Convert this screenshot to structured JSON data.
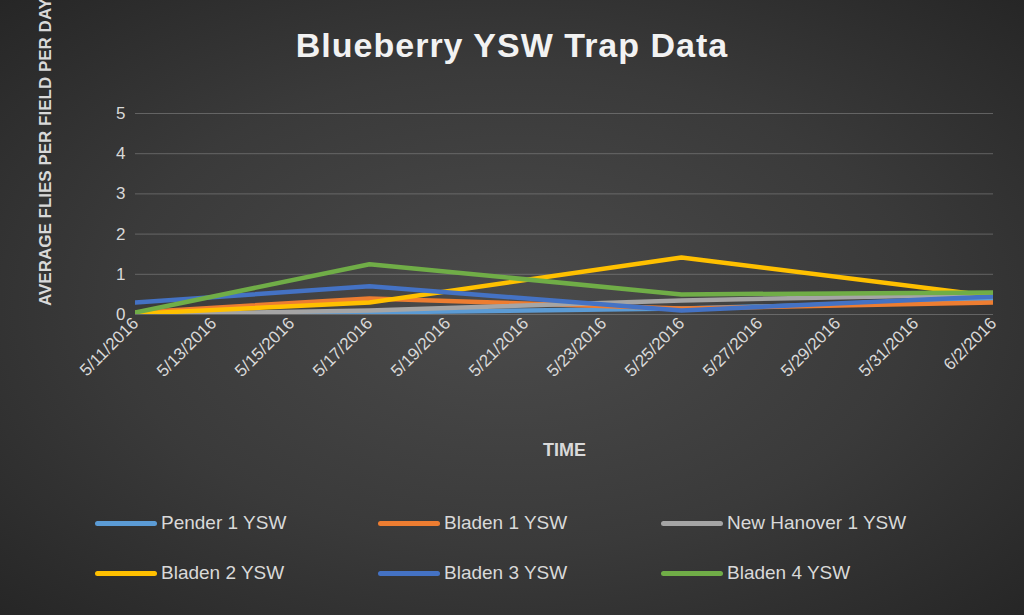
{
  "chart_data": {
    "type": "line",
    "title": "Blueberry YSW Trap Data",
    "x_label": "TIME",
    "y_label": "AVERAGE FLIES PER FIELD PER DAY",
    "x": [
      "5/11/2016",
      "5/17/2016",
      "5/25/2016",
      "6/2/2016"
    ],
    "series": [
      {
        "name": "Pender 1 YSW",
        "color": "#5b9bd5",
        "values": [
          0,
          0.05,
          0.15,
          0.35
        ]
      },
      {
        "name": "Bladen 1 YSW",
        "color": "#ed7d31",
        "values": [
          0.05,
          0.4,
          0.15,
          0.3
        ]
      },
      {
        "name": "New Hanover 1 YSW",
        "color": "#a5a5a5",
        "values": [
          0,
          0.1,
          0.35,
          0.5
        ]
      },
      {
        "name": "Bladen 2 YSW",
        "color": "#ffc000",
        "values": [
          0.02,
          0.3,
          1.42,
          0.45
        ]
      },
      {
        "name": "Bladen 3 YSW",
        "color": "#4472c4",
        "values": [
          0.3,
          0.7,
          0.1,
          0.45
        ]
      },
      {
        "name": "Bladen 4 YSW",
        "color": "#70ad47",
        "values": [
          0.05,
          1.25,
          0.5,
          0.55
        ]
      }
    ],
    "xlim": [
      "5/11/2016",
      "6/2/2016"
    ],
    "xticks": [
      "5/11/2016",
      "5/13/2016",
      "5/15/2016",
      "5/17/2016",
      "5/19/2016",
      "5/21/2016",
      "5/23/2016",
      "5/25/2016",
      "5/27/2016",
      "5/29/2016",
      "5/31/2016",
      "6/2/2016"
    ],
    "ylim": [
      0,
      5
    ],
    "yticks": [
      0,
      1,
      2,
      3,
      4,
      5
    ],
    "grid": true,
    "legend": "bottom"
  }
}
